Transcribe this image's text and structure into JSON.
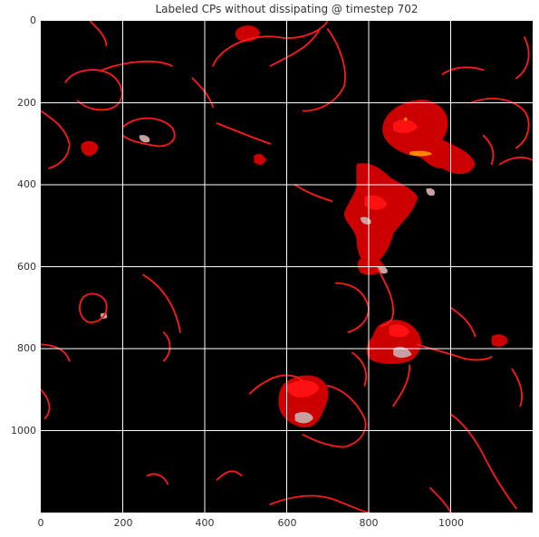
{
  "title": "Labeled CPs without dissipating @ timestep 702",
  "axes": {
    "x_ticks": [
      "0",
      "200",
      "400",
      "600",
      "800",
      "1000"
    ],
    "y_ticks": [
      "0",
      "200",
      "400",
      "600",
      "800",
      "1000"
    ],
    "xlim": [
      0,
      1200
    ],
    "ylim": [
      1200,
      0
    ],
    "grid": true,
    "grid_color": "#ffffff",
    "background": "#000000"
  },
  "colors": {
    "outline": "#ff1a1a",
    "region": "#cc0000",
    "region_bright": "#ff1111",
    "region_dark": "#990000",
    "highlight_gray": "#c8a0a0",
    "highlight_orange": "#ff8800"
  }
}
